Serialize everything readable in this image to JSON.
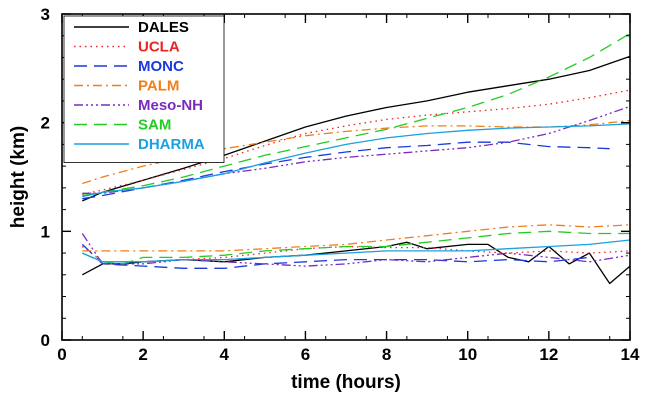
{
  "chart_data": {
    "type": "line",
    "xlabel": "time (hours)",
    "ylabel": "height (km)",
    "xlim": [
      0,
      14
    ],
    "ylim": [
      0,
      3
    ],
    "xticks": [
      0,
      2,
      4,
      6,
      8,
      10,
      12,
      14
    ],
    "yticks": [
      0,
      1,
      2,
      3
    ],
    "xtick_labels": [
      "0",
      "2",
      "4",
      "6",
      "8",
      "10",
      "12",
      "14"
    ],
    "ytick_labels": [
      "0",
      "1",
      "2",
      "3"
    ],
    "grid": false,
    "legend_position": "top-left",
    "series": [
      {
        "name": "DALES",
        "color": "#000000",
        "dash": "solid",
        "x_top": [
          0.5,
          1,
          2,
          3,
          4,
          5,
          6,
          7,
          8,
          9,
          10,
          11,
          12,
          13,
          14
        ],
        "top": [
          1.28,
          1.36,
          1.47,
          1.58,
          1.7,
          1.83,
          1.96,
          2.06,
          2.14,
          2.2,
          2.28,
          2.34,
          2.4,
          2.48,
          2.61
        ],
        "x_base": [
          0.5,
          1,
          1.5,
          2,
          3,
          4,
          5,
          6,
          7,
          8,
          8.5,
          9,
          10,
          10.5,
          11,
          11.5,
          12,
          12.5,
          13,
          13.5,
          14
        ],
        "base": [
          0.6,
          0.7,
          0.7,
          0.72,
          0.74,
          0.72,
          0.76,
          0.78,
          0.82,
          0.86,
          0.9,
          0.84,
          0.88,
          0.88,
          0.76,
          0.72,
          0.86,
          0.7,
          0.8,
          0.52,
          0.68
        ]
      },
      {
        "name": "UCLA",
        "color": "#ee2222",
        "dash": "dot",
        "x_top": [
          0.5,
          1,
          2,
          3,
          4,
          5,
          6,
          7,
          8,
          9,
          10,
          11,
          12,
          13,
          14
        ],
        "top": [
          1.34,
          1.38,
          1.47,
          1.57,
          1.67,
          1.79,
          1.9,
          1.97,
          2.03,
          2.07,
          2.1,
          2.13,
          2.17,
          2.23,
          2.3
        ],
        "x_base": [
          0.5,
          1,
          2,
          3,
          4,
          5,
          6,
          7,
          8,
          9,
          10,
          11,
          12,
          13,
          14
        ],
        "base": [
          0.86,
          0.72,
          0.72,
          0.74,
          0.76,
          0.8,
          0.84,
          0.86,
          0.85,
          0.85,
          0.82,
          0.8,
          0.82,
          0.8,
          0.82
        ]
      },
      {
        "name": "MONC",
        "color": "#1a3adb",
        "dash": "longdash",
        "x_top": [
          0.5,
          1,
          2,
          3,
          4,
          5,
          6,
          7,
          8,
          9,
          10,
          11,
          12,
          13,
          13.5
        ],
        "top": [
          1.3,
          1.33,
          1.4,
          1.47,
          1.55,
          1.62,
          1.68,
          1.73,
          1.77,
          1.79,
          1.82,
          1.82,
          1.78,
          1.77,
          1.76
        ],
        "x_base": [
          0.5,
          1,
          2,
          3,
          4,
          5,
          6,
          7,
          8,
          9,
          10,
          11,
          12,
          13
        ],
        "base": [
          0.88,
          0.7,
          0.68,
          0.66,
          0.66,
          0.7,
          0.72,
          0.74,
          0.74,
          0.74,
          0.72,
          0.74,
          0.72,
          0.76
        ]
      },
      {
        "name": "PALM",
        "color": "#f07f1a",
        "dash": "dashdot",
        "x_top": [
          0.5,
          1,
          2,
          3,
          4,
          5,
          6,
          7,
          8,
          9,
          10,
          11,
          12,
          13,
          14
        ],
        "top": [
          1.44,
          1.5,
          1.6,
          1.68,
          1.76,
          1.82,
          1.88,
          1.92,
          1.95,
          1.97,
          1.97,
          1.96,
          1.96,
          1.98,
          2.02
        ],
        "x_base": [
          0.5,
          1,
          2,
          3,
          4,
          5,
          6,
          7,
          8,
          9,
          10,
          11,
          12,
          13,
          14
        ],
        "base": [
          0.82,
          0.82,
          0.82,
          0.82,
          0.82,
          0.84,
          0.86,
          0.88,
          0.92,
          0.96,
          1.0,
          1.04,
          1.06,
          1.04,
          1.06
        ]
      },
      {
        "name": "Meso-NH",
        "color": "#7a2bbf",
        "dash": "dashdotdotdot",
        "x_top": [
          0.5,
          1,
          2,
          3,
          4,
          5,
          6,
          7,
          8,
          9,
          10,
          11,
          12,
          13,
          14
        ],
        "top": [
          1.35,
          1.35,
          1.4,
          1.46,
          1.53,
          1.58,
          1.64,
          1.68,
          1.71,
          1.74,
          1.77,
          1.82,
          1.9,
          2.02,
          2.15
        ],
        "x_base": [
          0.5,
          1,
          2,
          3,
          4,
          5,
          6,
          7,
          8,
          9,
          10,
          11,
          12,
          13,
          14
        ],
        "base": [
          0.98,
          0.7,
          0.7,
          0.74,
          0.72,
          0.7,
          0.68,
          0.7,
          0.74,
          0.72,
          0.76,
          0.8,
          0.76,
          0.72,
          0.78
        ]
      },
      {
        "name": "SAM",
        "color": "#22cc22",
        "dash": "longdash",
        "x_top": [
          0.5,
          1,
          2,
          3,
          4,
          5,
          6,
          7,
          8,
          9,
          10,
          11,
          12,
          13,
          14
        ],
        "top": [
          1.33,
          1.36,
          1.42,
          1.5,
          1.6,
          1.7,
          1.78,
          1.86,
          1.94,
          2.04,
          2.14,
          2.26,
          2.42,
          2.6,
          2.82
        ],
        "x_base": [
          0.5,
          1,
          1.5,
          2,
          3,
          4,
          5,
          6,
          7,
          8,
          9,
          10,
          11,
          12,
          13,
          14
        ],
        "base": [
          0.8,
          0.72,
          0.7,
          0.76,
          0.76,
          0.78,
          0.82,
          0.84,
          0.86,
          0.86,
          0.9,
          0.94,
          0.98,
          1.0,
          0.98,
          0.98
        ]
      },
      {
        "name": "DHARMA",
        "color": "#1ba0e0",
        "dash": "solid",
        "x_top": [
          0.5,
          1,
          2,
          3,
          4,
          5,
          6,
          7,
          8,
          9,
          10,
          11,
          12,
          13,
          14
        ],
        "top": [
          1.32,
          1.36,
          1.4,
          1.46,
          1.53,
          1.63,
          1.72,
          1.8,
          1.86,
          1.9,
          1.93,
          1.95,
          1.96,
          1.97,
          1.99
        ],
        "x_base": [
          0.5,
          1,
          2,
          3,
          4,
          5,
          6,
          7,
          8,
          9,
          10,
          11,
          12,
          13,
          14
        ],
        "base": [
          0.8,
          0.72,
          0.72,
          0.74,
          0.74,
          0.76,
          0.78,
          0.8,
          0.82,
          0.82,
          0.82,
          0.84,
          0.86,
          0.88,
          0.92
        ]
      }
    ]
  }
}
